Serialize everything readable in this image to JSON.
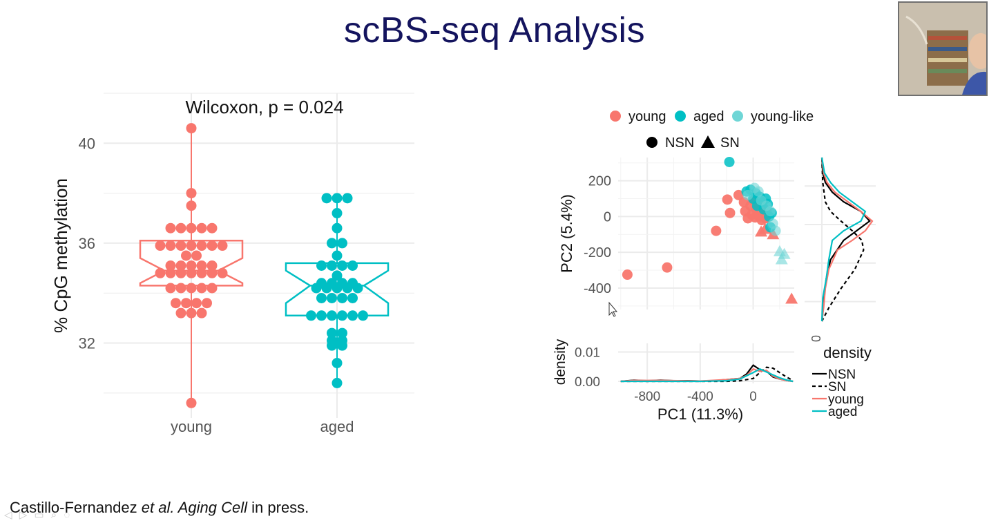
{
  "slide": {
    "title": "scBS-seq Analysis",
    "citation": {
      "part1": "Castillo-Fernandez ",
      "italic": "et al. Aging Cell",
      "part2": " in press."
    }
  },
  "colors": {
    "young": "#f8766d",
    "aged": "#00bfc4",
    "young_like": "#6fd6d6",
    "title": "#14145e"
  },
  "chart_data": [
    {
      "type": "box",
      "title": "Wilcoxon, p = 0.024",
      "xlabel": "",
      "ylabel": "% CpG methylation",
      "ylim": [
        29.0,
        42.0
      ],
      "yticks": [
        32,
        36,
        40
      ],
      "categories": [
        "young",
        "aged"
      ],
      "boxes": [
        {
          "name": "young",
          "q1": 34.3,
          "median": 34.9,
          "q3": 36.1,
          "notch_low": 34.4,
          "notch_high": 35.4,
          "whisker_low": 29.6,
          "whisker_high": 40.6
        },
        {
          "name": "aged",
          "q1": 33.1,
          "median": 34.3,
          "q3": 35.2,
          "notch_low": 33.6,
          "notch_high": 34.9,
          "whisker_low": 30.4,
          "whisker_high": 37.8
        }
      ],
      "points": [
        {
          "group": "young",
          "values": [
            40.6,
            38.0,
            37.5,
            36.6,
            36.6,
            36.6,
            36.6,
            36.6,
            35.9,
            35.9,
            35.9,
            35.9,
            35.9,
            35.9,
            35.9,
            35.5,
            35.5,
            35.1,
            35.1,
            35.1,
            35.1,
            35.1,
            34.8,
            34.8,
            34.8,
            34.8,
            34.8,
            34.8,
            34.8,
            34.2,
            34.2,
            34.2,
            34.2,
            34.2,
            33.6,
            33.6,
            33.6,
            33.6,
            33.2,
            33.2,
            33.2,
            29.6
          ]
        },
        {
          "group": "aged",
          "values": [
            37.8,
            37.8,
            37.8,
            37.2,
            36.6,
            36.0,
            36.0,
            35.5,
            35.1,
            35.1,
            35.1,
            35.1,
            34.7,
            34.4,
            34.4,
            34.4,
            34.4,
            34.2,
            34.2,
            34.2,
            34.2,
            34.2,
            33.8,
            33.8,
            33.8,
            33.8,
            33.1,
            33.1,
            33.1,
            33.1,
            33.1,
            33.1,
            32.4,
            32.4,
            32.1,
            32.1,
            31.9,
            31.9,
            31.2,
            30.4
          ]
        }
      ]
    },
    {
      "type": "scatter",
      "xlabel": "",
      "ylabel": "PC2 (5.4%)",
      "xlim": [
        -1020,
        310
      ],
      "ylim": [
        -520,
        330
      ],
      "yticks": [
        200,
        0,
        -200,
        -400
      ],
      "legend_color": [
        {
          "label": "young",
          "color": "#f8766d"
        },
        {
          "label": "aged",
          "color": "#00bfc4"
        },
        {
          "label": "young-like",
          "color": "#6fd6d6"
        }
      ],
      "legend_shape": [
        {
          "label": "NSN",
          "shape": "circle"
        },
        {
          "label": "SN",
          "shape": "triangle"
        }
      ],
      "legend_placement": "top",
      "series": [
        {
          "name": "young",
          "shape": "circle",
          "points": [
            [
              -950,
              -325
            ],
            [
              -650,
              -285
            ],
            [
              -280,
              -80
            ],
            [
              -195,
              95
            ],
            [
              -175,
              20
            ],
            [
              -110,
              120
            ],
            [
              -70,
              80
            ],
            [
              -60,
              30
            ],
            [
              -40,
              -10
            ],
            [
              -20,
              60
            ],
            [
              -10,
              10
            ],
            [
              5,
              90
            ],
            [
              15,
              -5
            ],
            [
              25,
              40
            ],
            [
              35,
              70
            ],
            [
              45,
              0
            ],
            [
              55,
              25
            ],
            [
              65,
              -20
            ],
            [
              75,
              50
            ],
            [
              85,
              10
            ],
            [
              95,
              -10
            ],
            [
              100,
              30
            ]
          ]
        },
        {
          "name": "young",
          "shape": "triangle",
          "points": [
            [
              60,
              -85
            ],
            [
              90,
              -70
            ],
            [
              150,
              -100
            ],
            [
              290,
              -460
            ]
          ]
        },
        {
          "name": "aged",
          "shape": "circle",
          "points": [
            [
              -180,
              305
            ],
            [
              -50,
              140
            ],
            [
              -20,
              150
            ],
            [
              0,
              100
            ],
            [
              20,
              130
            ],
            [
              30,
              60
            ],
            [
              50,
              110
            ],
            [
              70,
              80
            ],
            [
              80,
              40
            ],
            [
              95,
              100
            ],
            [
              110,
              70
            ],
            [
              120,
              0
            ],
            [
              130,
              -60
            ],
            [
              140,
              20
            ]
          ]
        },
        {
          "name": "young-like",
          "shape": "circle",
          "points": [
            [
              -40,
              120
            ],
            [
              10,
              160
            ],
            [
              40,
              140
            ],
            [
              60,
              90
            ],
            [
              100,
              60
            ],
            [
              130,
              30
            ],
            [
              150,
              -40
            ],
            [
              170,
              -80
            ]
          ]
        },
        {
          "name": "young-like",
          "shape": "triangle",
          "points": [
            [
              200,
              -195
            ],
            [
              215,
              -240
            ],
            [
              235,
              -210
            ]
          ]
        }
      ]
    },
    {
      "type": "line",
      "xlabel": "PC1 (11.3%)",
      "ylabel": "density",
      "xlim": [
        -1020,
        310
      ],
      "ylim": [
        0,
        0.012
      ],
      "xticks": [
        -800,
        -400,
        0
      ],
      "yticks": [
        0.0,
        0.01
      ],
      "ytick_labels": [
        "0.00",
        "0.01"
      ],
      "series": [
        {
          "name": "NSN",
          "color": "#000000",
          "dash": "solid",
          "x": [
            -1000,
            -900,
            -800,
            -700,
            -600,
            -500,
            -400,
            -300,
            -200,
            -150,
            -100,
            -50,
            0,
            50,
            100,
            150,
            200,
            250,
            300
          ],
          "y": [
            0,
            0.0004,
            0.0002,
            0.0004,
            0.0002,
            0.0002,
            0.0001,
            0.0002,
            0.0006,
            0.0008,
            0.001,
            0.0025,
            0.0055,
            0.004,
            0.0035,
            0.0015,
            0.0008,
            0.0003,
            0
          ]
        },
        {
          "name": "SN",
          "color": "#000000",
          "dash": "dashed",
          "x": [
            -1000,
            -400,
            -200,
            -100,
            0,
            50,
            100,
            150,
            200,
            250,
            300
          ],
          "y": [
            0,
            0,
            0,
            0.0002,
            0.001,
            0.003,
            0.0048,
            0.0045,
            0.003,
            0.0015,
            0.0003
          ]
        },
        {
          "name": "young",
          "color": "#f8766d",
          "dash": "solid",
          "x": [
            -1000,
            -900,
            -700,
            -400,
            -200,
            -100,
            -50,
            0,
            50,
            100,
            150,
            200,
            250,
            300
          ],
          "y": [
            0,
            0.0003,
            0.0003,
            0.0001,
            0.0006,
            0.001,
            0.002,
            0.0042,
            0.0034,
            0.0038,
            0.0018,
            0.0008,
            0.0003,
            0
          ]
        },
        {
          "name": "aged",
          "color": "#00bfc4",
          "dash": "solid",
          "x": [
            -1000,
            -400,
            -200,
            -100,
            0,
            50,
            100,
            150,
            200,
            250,
            300
          ],
          "y": [
            0,
            0,
            0.0002,
            0.0008,
            0.003,
            0.0042,
            0.0032,
            0.0022,
            0.0012,
            0.0005,
            0
          ]
        }
      ]
    },
    {
      "type": "line",
      "orientation": "vertical",
      "xlabel": "density",
      "ylabel": "",
      "xticks": [
        0
      ],
      "legend": [
        "NSN",
        "SN",
        "young",
        "aged"
      ],
      "legend_placement": "bottom-right",
      "ylim": [
        -520,
        330
      ],
      "xlim": [
        0,
        0.0062
      ],
      "series": [
        {
          "name": "NSN",
          "color": "#000000",
          "dash": "solid",
          "y": [
            -520,
            -480,
            -400,
            -300,
            -200,
            -100,
            -50,
            0,
            50,
            100,
            150,
            200,
            250,
            300,
            330
          ],
          "x": [
            0,
            0.0001,
            0.0002,
            0.0005,
            0.001,
            0.0025,
            0.004,
            0.0055,
            0.0045,
            0.0025,
            0.0012,
            0.0004,
            0.0001,
            5e-05,
            0
          ]
        },
        {
          "name": "SN",
          "color": "#000000",
          "dash": "dashed",
          "y": [
            -520,
            -450,
            -350,
            -250,
            -150,
            -100,
            -50,
            0,
            50,
            100,
            200,
            330
          ],
          "x": [
            0,
            0.0008,
            0.0022,
            0.0038,
            0.0048,
            0.0046,
            0.0035,
            0.0022,
            0.001,
            0.0004,
            0.0001,
            0
          ]
        },
        {
          "name": "young",
          "color": "#f8766d",
          "dash": "solid",
          "y": [
            -520,
            -450,
            -350,
            -250,
            -150,
            -100,
            -50,
            0,
            50,
            100,
            150,
            200,
            250,
            330
          ],
          "x": [
            0,
            0.0002,
            0.0004,
            0.0008,
            0.0018,
            0.0035,
            0.005,
            0.0058,
            0.0045,
            0.003,
            0.0015,
            0.0006,
            0.0002,
            0
          ]
        },
        {
          "name": "aged",
          "color": "#00bfc4",
          "dash": "solid",
          "y": [
            -520,
            -400,
            -300,
            -200,
            -100,
            -50,
            0,
            50,
            100,
            150,
            200,
            250,
            330
          ],
          "x": [
            0,
            0.0001,
            0.0005,
            0.0008,
            0.0012,
            0.0025,
            0.0045,
            0.005,
            0.0035,
            0.002,
            0.001,
            0.0003,
            0
          ]
        }
      ]
    }
  ]
}
